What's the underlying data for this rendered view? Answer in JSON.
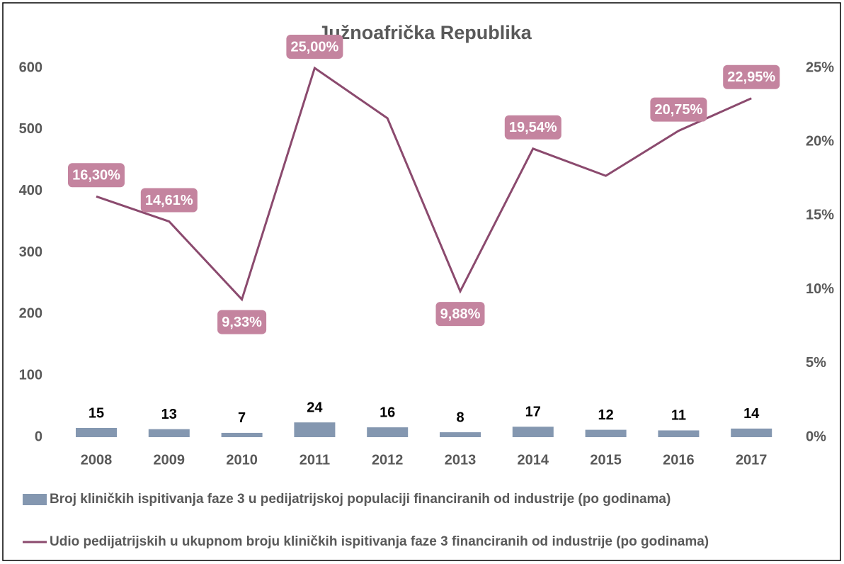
{
  "chart_data": {
    "type": "combo",
    "title": "Južnoafrička Republika",
    "categories": [
      "2008",
      "2009",
      "2010",
      "2011",
      "2012",
      "2013",
      "2014",
      "2015",
      "2016",
      "2017"
    ],
    "series": [
      {
        "name": "Broj kliničkih ispitivanja faze 3 u pedijatrijskoj populaciji financiranih od industrije (po godinama)",
        "type": "bar",
        "color": "#8497b0",
        "values": [
          15,
          13,
          7,
          24,
          16,
          8,
          17,
          12,
          11,
          14
        ]
      },
      {
        "name": "Udio pedijatrijskih u ukupnom broju kliničkih ispitivanja faze 3 financiranih od industrije (po godinama)",
        "type": "line",
        "axis": "y2",
        "color": "#8b4a6e",
        "values": [
          16.3,
          14.61,
          9.33,
          25.0,
          21.6,
          9.88,
          19.54,
          17.7,
          20.75,
          22.95
        ],
        "value_labels": [
          "16,30%",
          "14,61%",
          "9,33%",
          "25,00%",
          null,
          "9,88%",
          "19,54%",
          null,
          "20,75%",
          "22,95%"
        ]
      }
    ],
    "ylim": [
      0,
      600
    ],
    "yticks": [
      0,
      100,
      200,
      300,
      400,
      500,
      600
    ],
    "y2lim": [
      0,
      25
    ],
    "y2ticks": [
      {
        "value": 0,
        "label": "0%"
      },
      {
        "value": 5,
        "label": "5%"
      },
      {
        "value": 10,
        "label": "10%"
      },
      {
        "value": 15,
        "label": "15%"
      },
      {
        "value": 20,
        "label": "20%"
      },
      {
        "value": 25,
        "label": "25%"
      }
    ],
    "legend": "bottom"
  }
}
